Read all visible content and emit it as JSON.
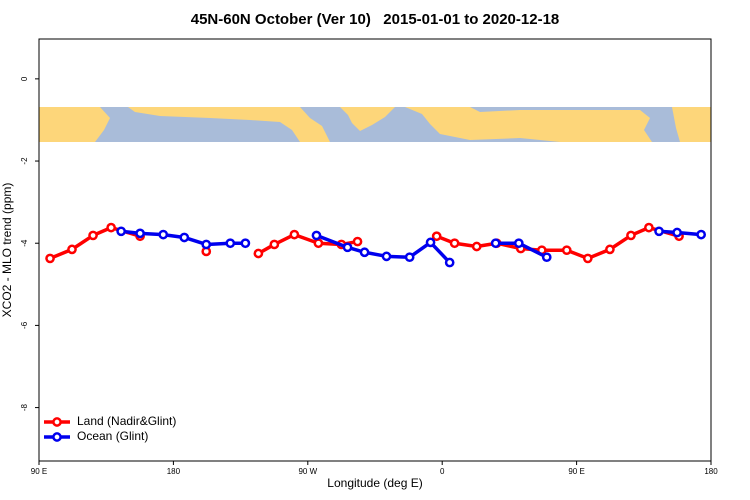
{
  "chart_data": {
    "type": "line",
    "title": "45N-60N October (Ver 10)   2015-01-01 to 2020-12-18",
    "x_label": "Longitude (deg E)",
    "y_label": "XCO2 - MLO trend (ppm)",
    "xlim": [
      90,
      540
    ],
    "xticks": [
      {
        "value": 90,
        "label": "90 E"
      },
      {
        "value": 180,
        "label": "180"
      },
      {
        "value": 270,
        "label": "90 W"
      },
      {
        "value": 360,
        "label": "0"
      },
      {
        "value": 450,
        "label": "90 E"
      },
      {
        "value": 540,
        "label": "180"
      }
    ],
    "ylim": [
      -9.3,
      0.97
    ],
    "yticks": [
      0,
      -2,
      -4,
      -6,
      -8
    ],
    "legend": "bottom-left",
    "series": [
      {
        "name": "Land (Nadir&Glint)",
        "color": "#ff0000",
        "x": [
          97.4,
          112.1,
          126.2,
          138.3,
          157.7,
          null,
          202.0,
          null,
          236.9,
          247.6,
          261.0,
          277.1,
          292.5,
          303.3,
          null,
          356.3,
          368.3,
          383.1,
          396.5,
          412.6,
          426.7,
          443.4,
          457.5,
          472.3,
          486.4,
          498.4,
          518.6
        ],
        "values": [
          -4.37,
          -4.15,
          -3.81,
          -3.62,
          -3.83,
          null,
          -4.2,
          null,
          -4.25,
          -4.03,
          -3.79,
          -4.0,
          -4.03,
          -3.96,
          null,
          -3.83,
          -4.0,
          -4.08,
          -4.0,
          -4.13,
          -4.17,
          -4.17,
          -4.37,
          -4.15,
          -3.81,
          -3.62,
          -3.83
        ]
      },
      {
        "name": "Ocean (Glint)",
        "color": "#0000ee",
        "x": [
          145.0,
          157.7,
          173.2,
          187.3,
          202.0,
          218.1,
          228.2,
          null,
          275.8,
          296.6,
          308.0,
          322.7,
          338.2,
          352.2,
          365.0,
          null,
          395.8,
          411.3,
          430.0,
          null,
          505.2,
          517.3,
          533.4
        ],
        "values": [
          -3.71,
          -3.76,
          -3.79,
          -3.86,
          -4.03,
          -4.0,
          -4.0,
          null,
          -3.81,
          -4.1,
          -4.22,
          -4.32,
          -4.34,
          -3.98,
          -4.47,
          null,
          -4.0,
          -4.0,
          -4.34,
          null,
          -3.71,
          -3.74,
          -3.79
        ]
      }
    ]
  }
}
